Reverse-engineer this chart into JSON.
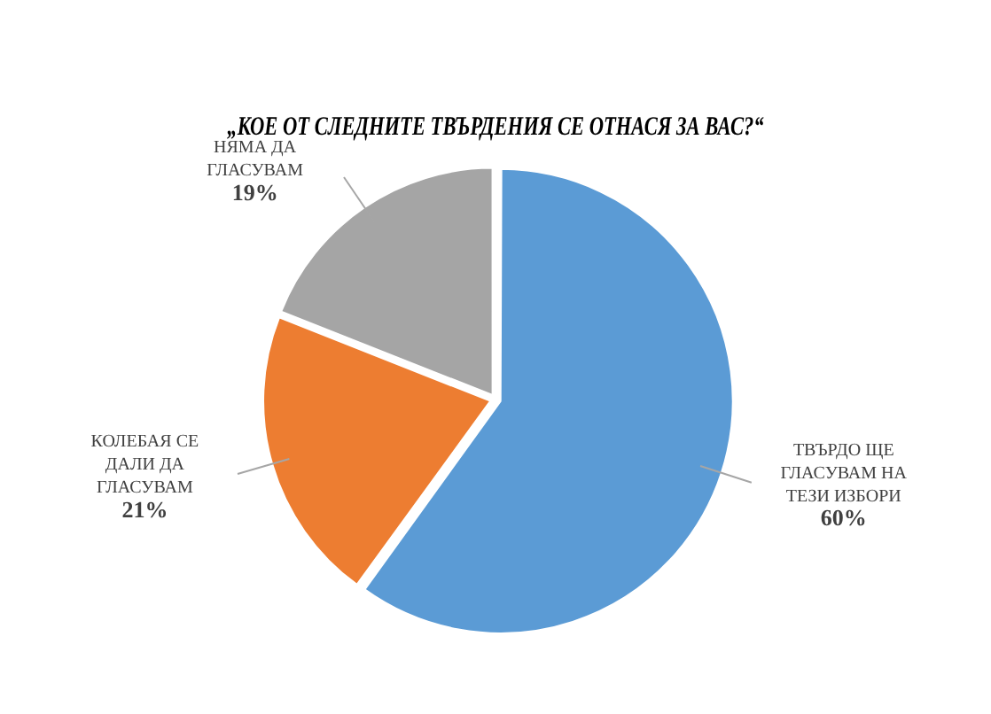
{
  "chart_data": {
    "type": "pie",
    "title": "„КОЕ ОТ СЛЕДНИТЕ ТВЪРДЕНИЯ СЕ ОТНАСЯ ЗА ВАС?“",
    "categories": [
      "ТВЪРДО ЩЕ ГЛАСУВАМ НА ТЕЗИ ИЗБОРИ",
      "КОЛЕБАЯ СЕ ДАЛИ ДА ГЛАСУВАМ",
      "НЯМА ДА ГЛАСУВАМ"
    ],
    "values": [
      60,
      21,
      19
    ],
    "value_labels": [
      "60%",
      "21%",
      "19%"
    ],
    "colors": [
      "#5b9bd5",
      "#ed7d31",
      "#a5a5a5"
    ],
    "legend": false
  }
}
